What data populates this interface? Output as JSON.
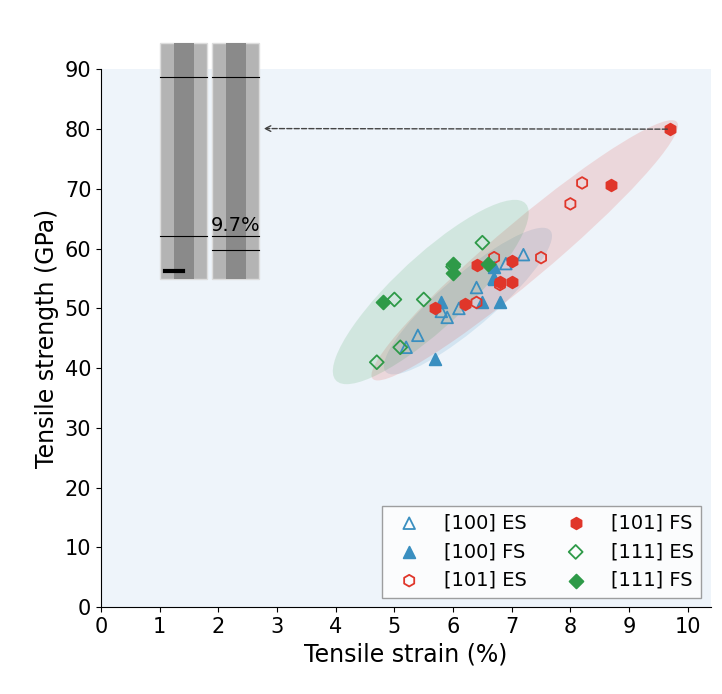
{
  "chart_data": {
    "type": "scatter",
    "x_label": "Tensile strain (%)",
    "y_label": "Tensile strength (GPa)",
    "xlim": [
      0,
      10.4
    ],
    "ylim": [
      0,
      90
    ],
    "xticks": [
      0,
      1,
      2,
      3,
      4,
      5,
      6,
      7,
      8,
      9,
      10
    ],
    "yticks": [
      0,
      10,
      20,
      30,
      40,
      50,
      60,
      70,
      80,
      90
    ],
    "grid": false,
    "legend": "lower right",
    "annotation": {
      "text": "9.7%",
      "xy": [
        9.7,
        80
      ]
    },
    "series": [
      {
        "name": "[100] ES",
        "color": "#3a8fc0",
        "marker": "open_triangle",
        "x": [
          5.2,
          5.4,
          5.8,
          5.9,
          6.1,
          6.4,
          6.7,
          6.9,
          7.2
        ],
        "values": [
          43.5,
          45.5,
          49.5,
          48.5,
          50,
          53.5,
          55,
          57.5,
          59
        ]
      },
      {
        "name": "[100] FS",
        "color": "#3a8fc0",
        "marker": "filled_triangle",
        "x": [
          5.7,
          5.8,
          6.5,
          6.7,
          6.8,
          6.7
        ],
        "values": [
          41.5,
          51,
          51,
          55,
          51,
          57
        ]
      },
      {
        "name": "[101] ES",
        "color": "#e0362a",
        "marker": "open_hexagon",
        "x": [
          6.4,
          6.7,
          6.8,
          7.5,
          8.0,
          8.2
        ],
        "values": [
          51,
          58.5,
          54,
          58.5,
          67.5,
          71
        ]
      },
      {
        "name": "[101] FS",
        "color": "#e0362a",
        "marker": "filled_hexagon",
        "x": [
          5.7,
          6.2,
          6.4,
          6.8,
          7.0,
          7.0,
          8.7,
          9.7
        ],
        "values": [
          50,
          50.7,
          57.3,
          54.5,
          58,
          54.5,
          70.7,
          80
        ]
      },
      {
        "name": "[111] ES",
        "color": "#2e9a48",
        "marker": "open_diamond",
        "x": [
          4.7,
          5.0,
          5.1,
          5.5,
          6.0,
          6.5
        ],
        "values": [
          41,
          51.5,
          43.5,
          51.5,
          57,
          61
        ]
      },
      {
        "name": "[111] FS",
        "color": "#2e9a48",
        "marker": "filled_diamond",
        "x": [
          4.8,
          6.0,
          6.0,
          6.6
        ],
        "values": [
          51,
          57.5,
          56,
          57.5
        ]
      }
    ]
  }
}
